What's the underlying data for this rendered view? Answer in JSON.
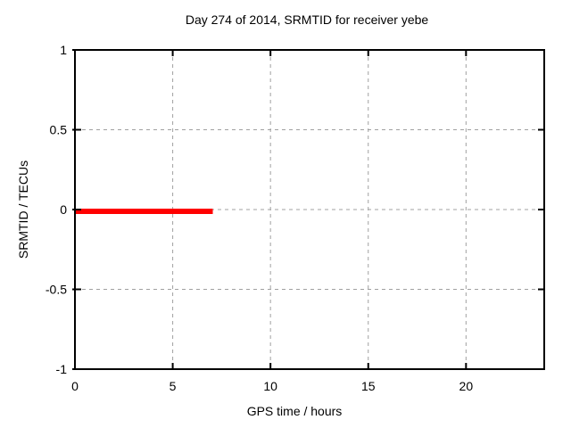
{
  "chart_data": {
    "type": "line",
    "title": "Day 274 of 2014, SRMTID for receiver yebe",
    "xlabel": "GPS time / hours",
    "ylabel": "SRMTID / TECUs",
    "xlim": [
      0,
      24
    ],
    "ylim": [
      -1,
      1
    ],
    "xtick_values": [
      0,
      5,
      10,
      15,
      20
    ],
    "xtick_labels": [
      "0",
      "5",
      "10",
      "15",
      "20"
    ],
    "ytick_values": [
      -1,
      -0.5,
      0,
      0.5,
      1
    ],
    "ytick_labels": [
      "-1",
      "-0.5",
      "0",
      "0.5",
      "1"
    ],
    "grid": true,
    "grid_color": "#a0a0a0",
    "axis_color": "#000000",
    "background_color": "#ffffff",
    "legend_position": "none",
    "series": [
      {
        "name": "SRMTID",
        "color": "#ff0000",
        "linewidth": 6,
        "x": [
          0,
          7.05
        ],
        "y": [
          0,
          0
        ]
      }
    ]
  }
}
